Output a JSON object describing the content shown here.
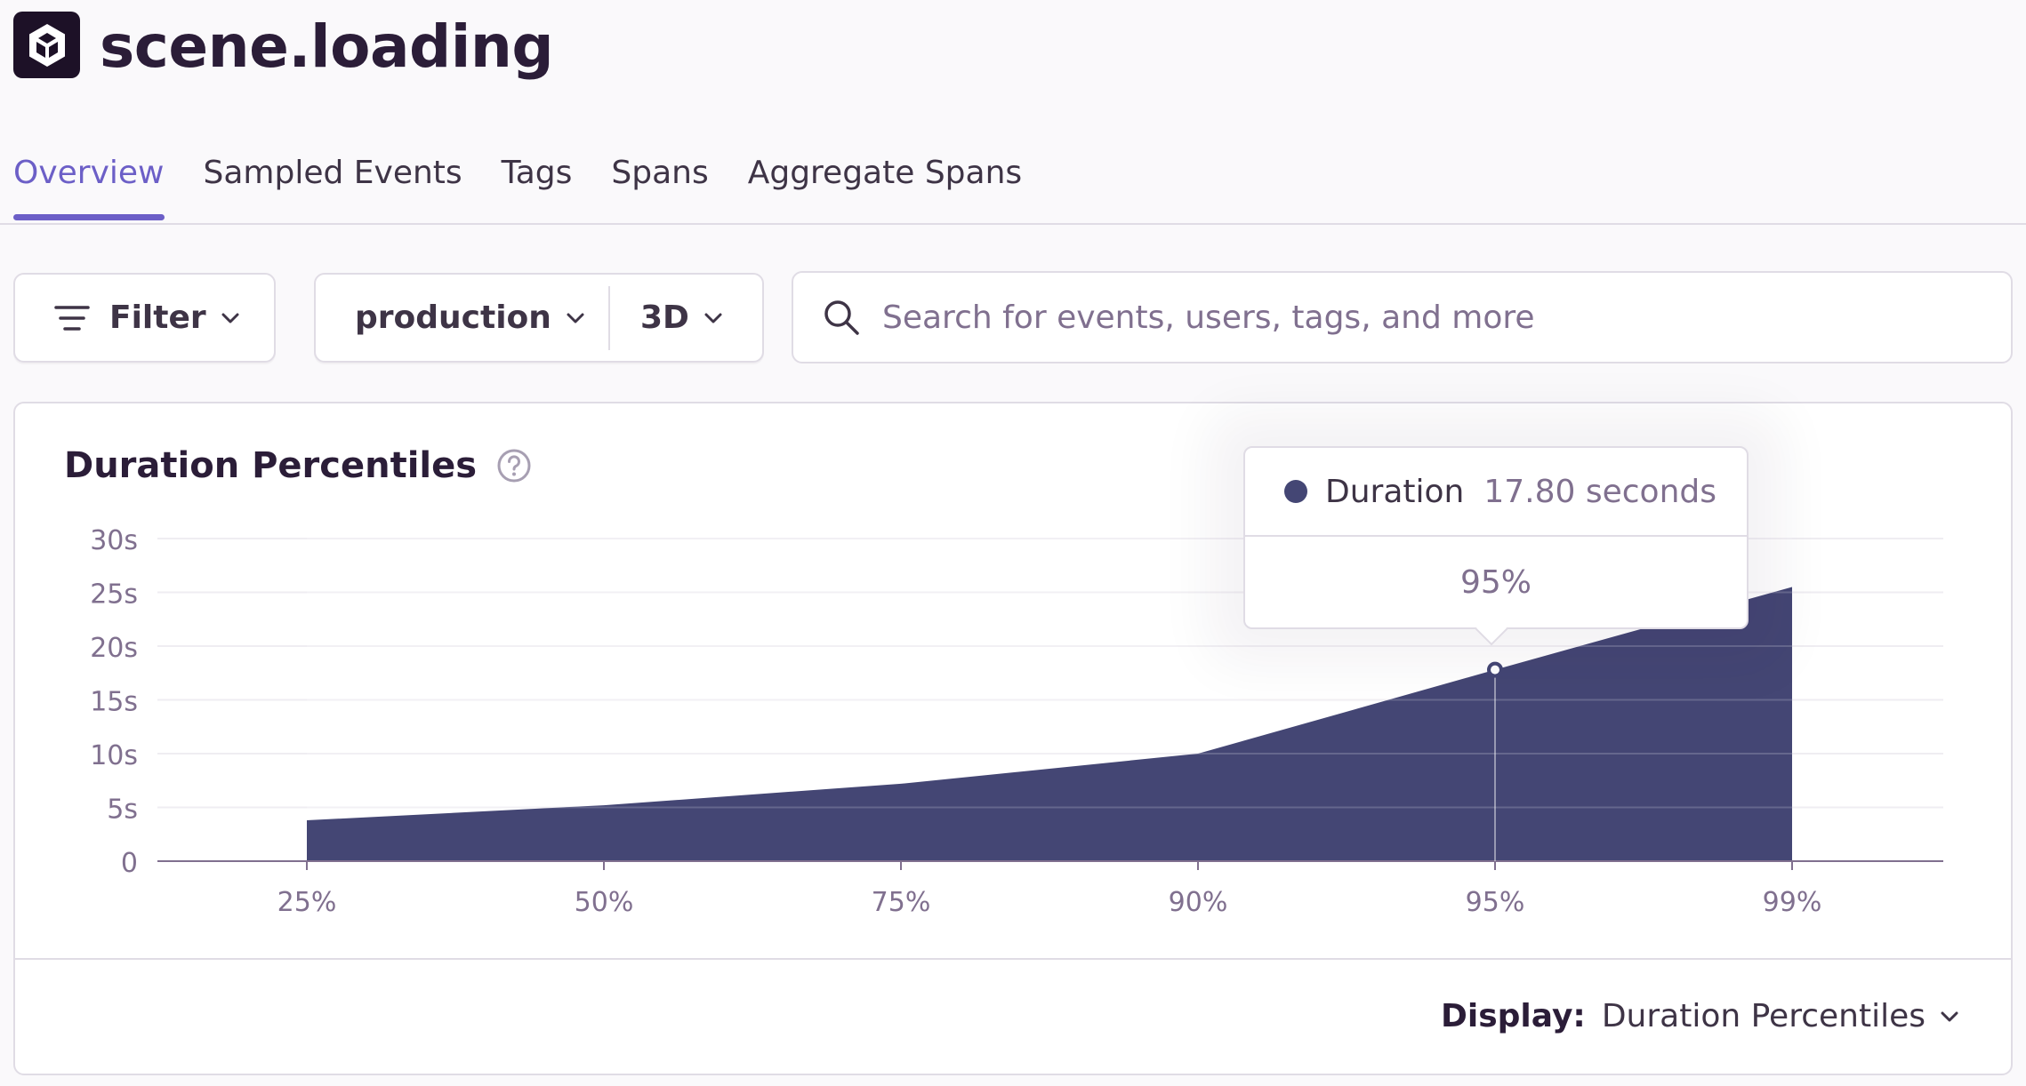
{
  "header": {
    "title": "scene.loading",
    "logo_icon": "unity-cube-icon",
    "tabs": [
      {
        "label": "Overview",
        "active": true
      },
      {
        "label": "Sampled Events",
        "active": false
      },
      {
        "label": "Tags",
        "active": false
      },
      {
        "label": "Spans",
        "active": false
      },
      {
        "label": "Aggregate Spans",
        "active": false
      }
    ]
  },
  "toolbar": {
    "filter_label": "Filter",
    "environment": "production",
    "period": "3D",
    "search_placeholder": "Search for events, users, tags, and more"
  },
  "panel": {
    "title": "Duration Percentiles",
    "display_label": "Display:",
    "display_value": "Duration Percentiles"
  },
  "tooltip": {
    "series_name": "Duration",
    "value": "17.80 seconds",
    "x_label": "95%"
  },
  "colors": {
    "accent": "#6c5fc7",
    "series": "#444674",
    "text": "#2b1d38",
    "muted": "#80708f",
    "border": "#e0dce5"
  },
  "chart_data": {
    "type": "area",
    "title": "Duration Percentiles",
    "categories": [
      "25%",
      "50%",
      "75%",
      "90%",
      "95%",
      "99%"
    ],
    "series": [
      {
        "name": "Duration",
        "values": [
          3.8,
          5.2,
          7.2,
          10.0,
          17.8,
          25.5
        ]
      }
    ],
    "y_ticks": [
      "0",
      "5s",
      "10s",
      "15s",
      "20s",
      "25s",
      "30s"
    ],
    "ylim": [
      0,
      30
    ],
    "grid": true,
    "highlighted_point": {
      "category": "95%",
      "value": 17.8
    }
  }
}
